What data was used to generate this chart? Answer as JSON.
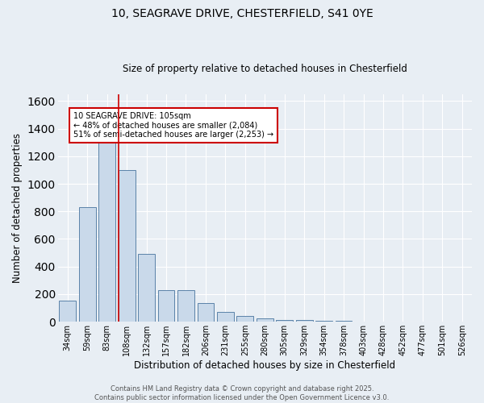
{
  "title_line1": "10, SEAGRAVE DRIVE, CHESTERFIELD, S41 0YE",
  "title_line2": "Size of property relative to detached houses in Chesterfield",
  "xlabel": "Distribution of detached houses by size in Chesterfield",
  "ylabel": "Number of detached properties",
  "bar_labels": [
    "34sqm",
    "59sqm",
    "83sqm",
    "108sqm",
    "132sqm",
    "157sqm",
    "182sqm",
    "206sqm",
    "231sqm",
    "255sqm",
    "280sqm",
    "305sqm",
    "329sqm",
    "354sqm",
    "378sqm",
    "403sqm",
    "428sqm",
    "452sqm",
    "477sqm",
    "501sqm",
    "526sqm"
  ],
  "bar_values": [
    150,
    830,
    1310,
    1100,
    490,
    230,
    230,
    135,
    70,
    42,
    25,
    15,
    12,
    8,
    5,
    3,
    2,
    1,
    1,
    0,
    0
  ],
  "bar_color": "#c9d9ea",
  "bar_edge_color": "#5b82a8",
  "red_line_index": 2.6,
  "annotation_text": "10 SEAGRAVE DRIVE: 105sqm\n← 48% of detached houses are smaller (2,084)\n51% of semi-detached houses are larger (2,253) →",
  "annotation_box_color": "#ffffff",
  "annotation_box_edge_color": "#cc0000",
  "property_line_color": "#cc0000",
  "ylim": [
    0,
    1650
  ],
  "yticks": [
    0,
    200,
    400,
    600,
    800,
    1000,
    1200,
    1400,
    1600
  ],
  "footer_line1": "Contains HM Land Registry data © Crown copyright and database right 2025.",
  "footer_line2": "Contains public sector information licensed under the Open Government Licence v3.0.",
  "background_color": "#e8eef4",
  "grid_color": "#ffffff",
  "figsize": [
    6.0,
    5.0
  ],
  "dpi": 100
}
